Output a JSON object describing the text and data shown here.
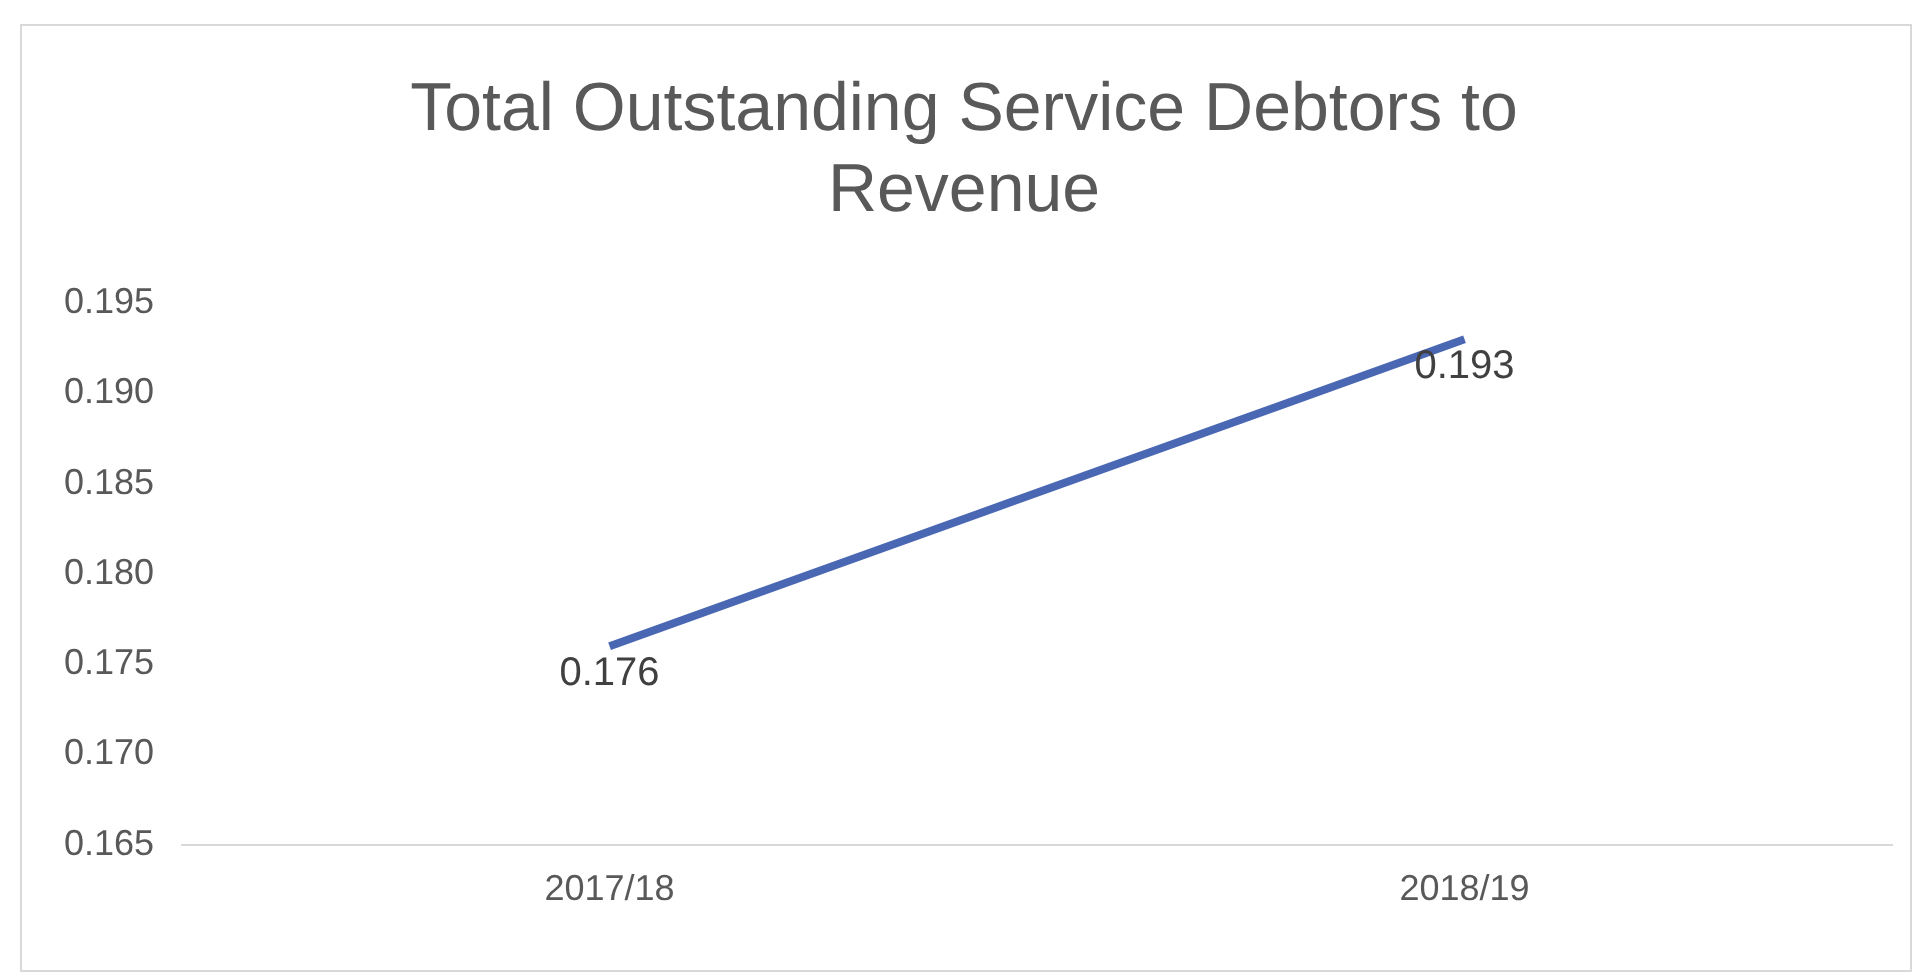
{
  "chart_data": {
    "type": "line",
    "title": "Total Outstanding Service Debtors to Revenue",
    "categories": [
      "2017/18",
      "2018/19"
    ],
    "series": [
      {
        "color": "#4a67b3",
        "values": [
          0.176,
          0.193
        ]
      }
    ],
    "ylim": [
      0.165,
      0.195
    ],
    "yticks": [
      0.165,
      {
        "value": 0.17,
        "label": "0.170"
      },
      0.175,
      {
        "value": 0.18,
        "label": "0.180"
      },
      0.185,
      {
        "value": 0.19,
        "label": "0.190"
      },
      0.195
    ],
    "data_labels": true,
    "grid": false,
    "legend": false,
    "marker": "none"
  }
}
